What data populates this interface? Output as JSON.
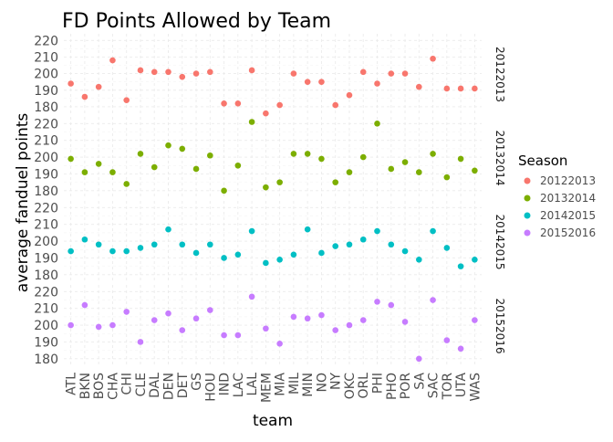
{
  "chart_data": {
    "type": "scatter",
    "title": "FD Points Allowed by Team",
    "xlabel": "team",
    "ylabel": "average fanduel points",
    "categories": [
      "ATL",
      "BKN",
      "BOS",
      "CHA",
      "CHI",
      "CLE",
      "DAL",
      "DEN",
      "DET",
      "GS",
      "HOU",
      "IND",
      "LAC",
      "LAL",
      "MEM",
      "MIA",
      "MIL",
      "MIN",
      "NO",
      "NY",
      "OKC",
      "ORL",
      "PHI",
      "PHO",
      "POR",
      "SA",
      "SAC",
      "TOR",
      "UTA",
      "WAS"
    ],
    "ylim": [
      175,
      224
    ],
    "yticks": [
      180,
      190,
      200,
      210,
      220
    ],
    "legend": {
      "title": "Season",
      "position": "right"
    },
    "grid": true,
    "series": [
      {
        "name": "20122013",
        "color": "#F8766D",
        "values": [
          194,
          186,
          192,
          208,
          184,
          202,
          201,
          201,
          198,
          200,
          201,
          182,
          182,
          202,
          176,
          181,
          200,
          195,
          195,
          181,
          187,
          201,
          194,
          200,
          200,
          192,
          209,
          191,
          191,
          191
        ]
      },
      {
        "name": "20132014",
        "color": "#7CAE00",
        "values": [
          199,
          191,
          196,
          191,
          184,
          202,
          194,
          207,
          205,
          193,
          201,
          180,
          195,
          221,
          182,
          185,
          202,
          202,
          199,
          185,
          191,
          200,
          220,
          193,
          197,
          191,
          202,
          188,
          199,
          192
        ]
      },
      {
        "name": "20142015",
        "color": "#00BFC4",
        "values": [
          194,
          201,
          198,
          194,
          194,
          196,
          198,
          207,
          198,
          193,
          198,
          190,
          192,
          206,
          187,
          189,
          192,
          207,
          193,
          197,
          198,
          201,
          206,
          198,
          194,
          189,
          206,
          196,
          185,
          189
        ]
      },
      {
        "name": "20152016",
        "color": "#C77CFF",
        "values": [
          200,
          212,
          199,
          200,
          208,
          190,
          203,
          207,
          197,
          204,
          209,
          194,
          194,
          217,
          198,
          189,
          205,
          204,
          206,
          197,
          200,
          203,
          214,
          212,
          202,
          180,
          215,
          191,
          186,
          203
        ]
      }
    ]
  }
}
